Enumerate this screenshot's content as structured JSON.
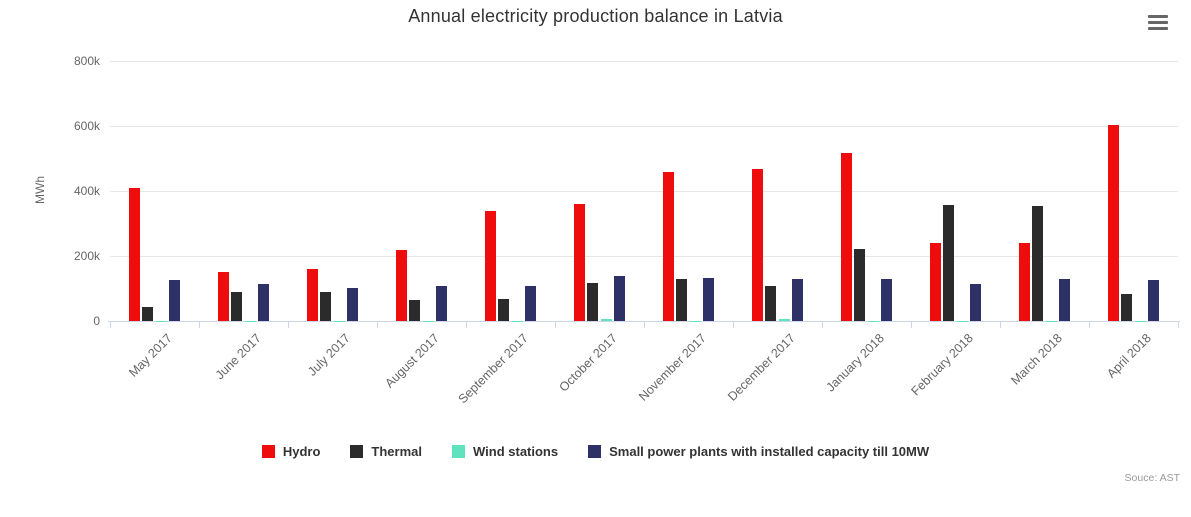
{
  "title": "Annual electricity production balance in Latvia",
  "credits": {
    "text": "Souce: AST"
  },
  "menu": {
    "icon": "hamburger-icon"
  },
  "colors": {
    "background": "#ffffff",
    "title_text": "#333333",
    "axis_label_text": "#666666",
    "gridline": "#e6e6e6",
    "axis_line": "#ccd6eb",
    "legend_text": "#333333",
    "credits_text": "#999999",
    "menu_icon": "#666666"
  },
  "chart_data": {
    "type": "bar",
    "title": "Annual electricity production balance in Latvia",
    "xlabel": "",
    "ylabel": "MWh",
    "ylim": [
      0,
      848000
    ],
    "grid": true,
    "legend_position": "bottom",
    "y_ticks": [
      {
        "label": "0",
        "value": 0
      },
      {
        "label": "200k",
        "value": 200000
      },
      {
        "label": "400k",
        "value": 400000
      },
      {
        "label": "600k",
        "value": 600000
      },
      {
        "label": "800k",
        "value": 800000
      }
    ],
    "categories": [
      "May 2017",
      "June 2017",
      "July 2017",
      "August 2017",
      "September 2017",
      "October 2017",
      "November 2017",
      "December 2017",
      "January 2018",
      "February 2018",
      "March 2018",
      "April 2018"
    ],
    "series": [
      {
        "name": "Hydro",
        "color": "#ee0c0c",
        "values": [
          410000,
          151000,
          159000,
          218000,
          339000,
          359000,
          457000,
          467000,
          517000,
          241000,
          240000,
          602000
        ]
      },
      {
        "name": "Thermal",
        "color": "#2b2b2b",
        "values": [
          42000,
          90000,
          90000,
          63000,
          69000,
          116000,
          128000,
          107000,
          221000,
          356000,
          352000,
          83000
        ]
      },
      {
        "name": "Wind stations",
        "color": "#5fe3bf",
        "values": [
          1000,
          1000,
          1000,
          1000,
          1000,
          7000,
          1000,
          7000,
          1000,
          1000,
          1000,
          1000
        ]
      },
      {
        "name": "Small power plants with installed capacity till 10MW",
        "color": "#2d3166",
        "values": [
          125000,
          113000,
          101000,
          106000,
          108000,
          138000,
          131000,
          129000,
          129000,
          114000,
          128000,
          126000
        ]
      }
    ]
  }
}
